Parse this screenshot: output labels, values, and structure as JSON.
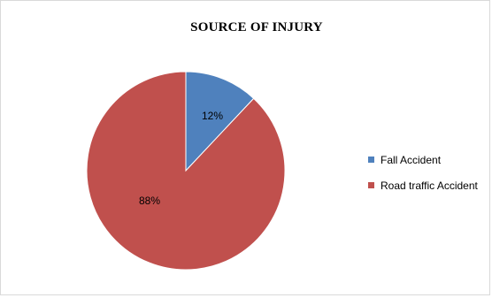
{
  "chart_data": {
    "type": "pie",
    "title": "SOURCE OF INJURY",
    "categories": [
      "Fall Accident",
      "Road traffic Accident"
    ],
    "values": [
      12,
      88
    ],
    "labels": [
      "12%",
      "88%"
    ],
    "colors": [
      "#4f81bd",
      "#c0504d"
    ],
    "legend_position": "right"
  }
}
